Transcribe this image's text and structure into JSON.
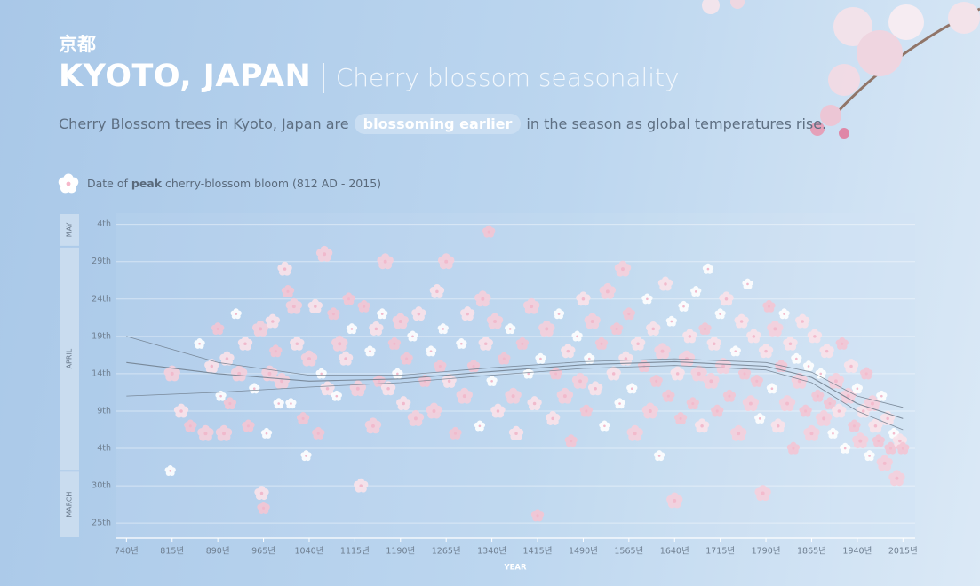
{
  "header": {
    "kanji": "京都",
    "title": "KYOTO, JAPAN",
    "subtitle": "Cherry blossom seasonality",
    "description": [
      "Cherry Blossom trees in Kyoto, Japan are",
      "blossoming earlier",
      "in the season as global temperatures rise."
    ]
  },
  "chart_data": {
    "type": "scatter",
    "legend": [
      "Date of ",
      "peak",
      " cherry-blossom bloom (812 AD - 2015)"
    ],
    "x_label": "YEAR",
    "xlim": [
      722,
      2035
    ],
    "xticks": [
      {
        "value": 740,
        "label": "740년"
      },
      {
        "value": 815,
        "label": "815년"
      },
      {
        "value": 890,
        "label": "890년"
      },
      {
        "value": 965,
        "label": "965년"
      },
      {
        "value": 1040,
        "label": "1040년"
      },
      {
        "value": 1115,
        "label": "1115년"
      },
      {
        "value": 1190,
        "label": "1190년"
      },
      {
        "value": 1265,
        "label": "1265년"
      },
      {
        "value": 1340,
        "label": "1340년"
      },
      {
        "value": 1415,
        "label": "1415년"
      },
      {
        "value": 1490,
        "label": "1490년"
      },
      {
        "value": 1565,
        "label": "1565년"
      },
      {
        "value": 1640,
        "label": "1640년"
      },
      {
        "value": 1715,
        "label": "1715년"
      },
      {
        "value": 1790,
        "label": "1790년"
      },
      {
        "value": 1865,
        "label": "1865년"
      },
      {
        "value": 1940,
        "label": "1940년"
      },
      {
        "value": 2015,
        "label": "2015년"
      }
    ],
    "ylim": [
      82,
      125.5
    ],
    "yticks": [
      {
        "value": 84,
        "label": "25th"
      },
      {
        "value": 89,
        "label": "30th"
      },
      {
        "value": 94,
        "label": "4th"
      },
      {
        "value": 99,
        "label": "9th"
      },
      {
        "value": 104,
        "label": "14th"
      },
      {
        "value": 109,
        "label": "19th"
      },
      {
        "value": 114,
        "label": "24th"
      },
      {
        "value": 119,
        "label": "29th"
      },
      {
        "value": 124,
        "label": "4th"
      }
    ],
    "months": [
      {
        "label": "MARCH",
        "from": 60
      },
      {
        "label": "APRIL",
        "from": 91
      },
      {
        "label": "MAY",
        "from": 121
      }
    ],
    "grid": true,
    "highlight_from": 1895,
    "color": "#f4c6d4",
    "x": [
      812,
      815,
      830,
      845,
      860,
      870,
      880,
      890,
      895,
      900,
      905,
      910,
      920,
      925,
      935,
      940,
      950,
      960,
      962,
      965,
      970,
      975,
      980,
      985,
      990,
      995,
      1000,
      1005,
      1010,
      1015,
      1020,
      1030,
      1035,
      1040,
      1050,
      1055,
      1060,
      1065,
      1070,
      1080,
      1085,
      1090,
      1100,
      1105,
      1110,
      1120,
      1125,
      1130,
      1140,
      1145,
      1150,
      1155,
      1160,
      1165,
      1170,
      1180,
      1185,
      1190,
      1195,
      1200,
      1210,
      1215,
      1220,
      1230,
      1240,
      1245,
      1250,
      1255,
      1260,
      1265,
      1270,
      1280,
      1290,
      1295,
      1300,
      1310,
      1320,
      1325,
      1330,
      1335,
      1340,
      1345,
      1350,
      1360,
      1370,
      1375,
      1380,
      1390,
      1400,
      1405,
      1410,
      1415,
      1420,
      1430,
      1440,
      1445,
      1450,
      1460,
      1465,
      1470,
      1480,
      1485,
      1490,
      1495,
      1500,
      1505,
      1510,
      1520,
      1525,
      1530,
      1540,
      1545,
      1550,
      1555,
      1560,
      1565,
      1570,
      1575,
      1580,
      1590,
      1595,
      1600,
      1605,
      1610,
      1615,
      1620,
      1625,
      1630,
      1635,
      1640,
      1645,
      1650,
      1655,
      1660,
      1665,
      1670,
      1675,
      1680,
      1685,
      1690,
      1695,
      1700,
      1705,
      1710,
      1715,
      1720,
      1725,
      1730,
      1740,
      1745,
      1750,
      1755,
      1760,
      1765,
      1770,
      1775,
      1780,
      1785,
      1790,
      1795,
      1800,
      1805,
      1810,
      1815,
      1820,
      1825,
      1830,
      1835,
      1840,
      1845,
      1850,
      1855,
      1860,
      1865,
      1870,
      1875,
      1880,
      1885,
      1890,
      1895,
      1900,
      1905,
      1910,
      1915,
      1920,
      1925,
      1930,
      1935,
      1940,
      1945,
      1950,
      1955,
      1960,
      1965,
      1970,
      1975,
      1980,
      1985,
      1990,
      1995,
      2000,
      2005,
      2010,
      2015
    ],
    "values": [
      91,
      104,
      99,
      97,
      108,
      96,
      105,
      110,
      101,
      96,
      106,
      100,
      112,
      104,
      108,
      97,
      102,
      110,
      88,
      86,
      96,
      104,
      111,
      107,
      100,
      103,
      118,
      115,
      100,
      113,
      108,
      98,
      93,
      106,
      113,
      96,
      104,
      120,
      102,
      112,
      101,
      108,
      106,
      114,
      110,
      102,
      89,
      113,
      107,
      97,
      110,
      103,
      112,
      119,
      102,
      108,
      104,
      111,
      100,
      106,
      109,
      98,
      112,
      103,
      107,
      99,
      115,
      105,
      110,
      119,
      103,
      96,
      108,
      101,
      112,
      105,
      97,
      114,
      108,
      123,
      103,
      111,
      99,
      106,
      110,
      101,
      96,
      108,
      104,
      113,
      100,
      85,
      106,
      110,
      98,
      104,
      112,
      101,
      107,
      95,
      109,
      103,
      114,
      99,
      106,
      111,
      102,
      108,
      97,
      115,
      104,
      110,
      100,
      118,
      106,
      112,
      102,
      96,
      108,
      105,
      114,
      99,
      110,
      103,
      93,
      107,
      116,
      101,
      111,
      87,
      104,
      98,
      113,
      106,
      109,
      100,
      115,
      104,
      97,
      110,
      118,
      103,
      108,
      99,
      112,
      105,
      114,
      101,
      107,
      96,
      111,
      104,
      116,
      100,
      109,
      103,
      98,
      88,
      107,
      113,
      102,
      110,
      97,
      105,
      112,
      100,
      108,
      94,
      106,
      103,
      111,
      99,
      105,
      96,
      109,
      101,
      104,
      98,
      107,
      100,
      96,
      103,
      99,
      108,
      94,
      101,
      105,
      97,
      102,
      95,
      99,
      104,
      93,
      100,
      97,
      95,
      101,
      92,
      98,
      94,
      96,
      90,
      95,
      94
    ],
    "trend": {
      "x": [
        740,
        890,
        1040,
        1190,
        1340,
        1490,
        1640,
        1790,
        1865,
        1940,
        2015
      ],
      "upper": [
        109,
        105.5,
        103.8,
        103.8,
        104.8,
        105.6,
        106,
        105.5,
        104.2,
        101,
        99.5
      ],
      "center": [
        105.5,
        104,
        103,
        103.3,
        104.3,
        105.2,
        105.6,
        105,
        103.5,
        100,
        98
      ],
      "lower": [
        101,
        101.5,
        102.2,
        102.8,
        103.8,
        104.7,
        105.1,
        104.5,
        102.8,
        99,
        96.5
      ]
    }
  }
}
